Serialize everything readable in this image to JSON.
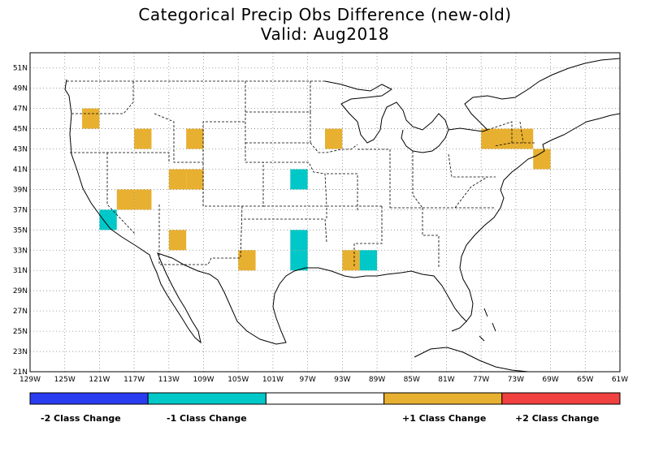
{
  "title": {
    "line1": "Categorical Precip Obs Difference (new-old)",
    "line2": "Valid: Aug2018"
  },
  "axes": {
    "lon_ticks": [
      "129W",
      "125W",
      "121W",
      "117W",
      "113W",
      "109W",
      "105W",
      "101W",
      "97W",
      "93W",
      "89W",
      "85W",
      "81W",
      "77W",
      "73W",
      "69W",
      "65W",
      "61W"
    ],
    "lat_ticks": [
      "51N",
      "49N",
      "47N",
      "45N",
      "43N",
      "41N",
      "39N",
      "37N",
      "35N",
      "33N",
      "31N",
      "29N",
      "27N",
      "25N",
      "23N",
      "21N"
    ],
    "lon_range": [
      -129,
      -61
    ],
    "lat_range": [
      21,
      52.5
    ],
    "grid": "dotted"
  },
  "colors": {
    "minus2": "#2a3cf0",
    "minus1": "#00c8c8",
    "zero": "#ffffff",
    "plus1": "#e8b030",
    "plus2": "#f04040"
  },
  "legend": {
    "labels": [
      "-2 Class Change",
      "-1 Class Change",
      "+1 Class Change",
      "+2 Class Change"
    ]
  },
  "map_cells": [
    {
      "lon": -122,
      "lat": 46,
      "change": 1
    },
    {
      "lon": -116,
      "lat": 44,
      "change": 1
    },
    {
      "lon": -110,
      "lat": 44,
      "change": 1
    },
    {
      "lon": -112,
      "lat": 40,
      "change": 1
    },
    {
      "lon": -110,
      "lat": 40,
      "change": 1
    },
    {
      "lon": -118,
      "lat": 38,
      "change": 1
    },
    {
      "lon": -116,
      "lat": 38,
      "change": 1
    },
    {
      "lon": -120,
      "lat": 36,
      "change": -1
    },
    {
      "lon": -112,
      "lat": 34,
      "change": 1
    },
    {
      "lon": -104,
      "lat": 32,
      "change": 1
    },
    {
      "lon": -98,
      "lat": 40,
      "change": -1
    },
    {
      "lon": -98,
      "lat": 34,
      "change": -1
    },
    {
      "lon": -98,
      "lat": 32,
      "change": -1
    },
    {
      "lon": -94,
      "lat": 44,
      "change": 1
    },
    {
      "lon": -92,
      "lat": 32,
      "change": 1
    },
    {
      "lon": -90,
      "lat": 32,
      "change": -1
    },
    {
      "lon": -76,
      "lat": 44,
      "change": 1
    },
    {
      "lon": -74,
      "lat": 44,
      "change": 1
    },
    {
      "lon": -72,
      "lat": 44,
      "change": 1
    },
    {
      "lon": -70,
      "lat": 42,
      "change": 1
    }
  ]
}
